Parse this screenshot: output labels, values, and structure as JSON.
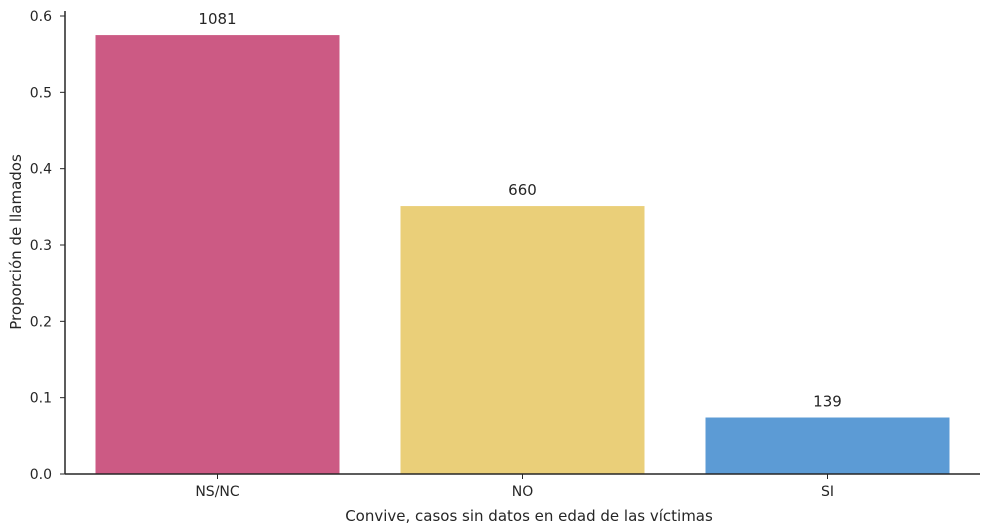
{
  "chart_data": {
    "type": "bar",
    "categories": [
      "NS/NC",
      "NO",
      "SI"
    ],
    "values": [
      0.575,
      0.351,
      0.074
    ],
    "data_labels": [
      "1081",
      "660",
      "139"
    ],
    "colors": [
      "#cc5a84",
      "#eacf79",
      "#5c9bd5"
    ],
    "xlabel": "Convive, casos sin datos en edad de las víctimas",
    "ylabel": "Proporción de llamados",
    "ylim": [
      0,
      0.6
    ],
    "yticks": [
      "0.0",
      "0.1",
      "0.2",
      "0.3",
      "0.4",
      "0.5",
      "0.6"
    ],
    "grid": false
  }
}
